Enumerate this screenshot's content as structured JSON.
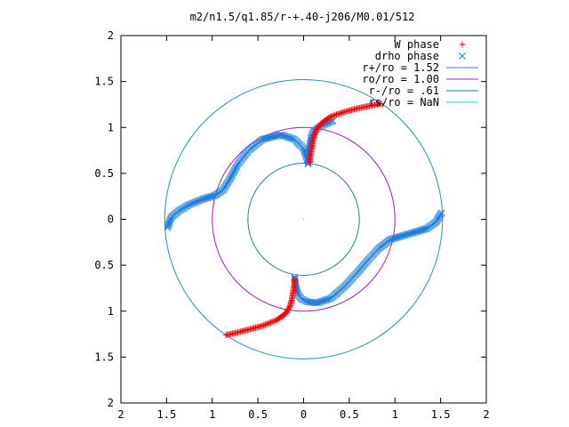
{
  "chart_data": {
    "type": "scatter",
    "title": "m2/n1.5/q1.85/r-+.40-j206/M0.01/512",
    "xlim": [
      -2,
      2
    ],
    "ylim": [
      -2,
      2
    ],
    "x_ticks": [
      -2,
      -1.5,
      -1,
      -0.5,
      0,
      0.5,
      1,
      1.5,
      2
    ],
    "x_tick_labels": [
      "2",
      "1.5",
      "1",
      "0.5",
      "0",
      "0.5",
      "1",
      "1.5",
      "2"
    ],
    "y_ticks": [
      -2,
      -1.5,
      -1,
      -0.5,
      0,
      0.5,
      1,
      1.5,
      2
    ],
    "y_tick_labels": [
      "2",
      "1.5",
      "1",
      "0.5",
      "0",
      "0.5",
      "1",
      "1.5",
      "2"
    ],
    "grid": false,
    "legend_position": "top-right",
    "series": [
      {
        "name": "W phase",
        "marker": "plus",
        "color": "#ff0000",
        "segments": [
          [
            [
              0.07,
              0.62
            ],
            [
              0.07,
              0.66
            ],
            [
              0.08,
              0.72
            ],
            [
              0.09,
              0.78
            ],
            [
              0.1,
              0.85
            ],
            [
              0.12,
              0.92
            ],
            [
              0.14,
              0.98
            ],
            [
              0.2,
              1.05
            ],
            [
              0.3,
              1.12
            ],
            [
              0.45,
              1.17
            ],
            [
              0.6,
              1.21
            ],
            [
              0.75,
              1.24
            ],
            [
              0.85,
              1.26
            ]
          ],
          [
            [
              -0.1,
              -0.65
            ],
            [
              -0.1,
              -0.7
            ],
            [
              -0.11,
              -0.76
            ],
            [
              -0.12,
              -0.82
            ],
            [
              -0.13,
              -0.88
            ],
            [
              -0.15,
              -0.95
            ],
            [
              -0.2,
              -1.03
            ],
            [
              -0.3,
              -1.1
            ],
            [
              -0.45,
              -1.16
            ],
            [
              -0.6,
              -1.2
            ],
            [
              -0.75,
              -1.24
            ],
            [
              -0.85,
              -1.26
            ]
          ]
        ]
      },
      {
        "name": "drho phase",
        "marker": "cross",
        "color": "#1f7fe0",
        "segments": [
          [
            [
              0.05,
              0.6
            ],
            [
              0.05,
              0.66
            ],
            [
              0.06,
              0.72
            ],
            [
              0.07,
              0.8
            ],
            [
              0.08,
              0.88
            ],
            [
              0.1,
              0.94
            ],
            [
              0.15,
              0.99
            ],
            [
              0.22,
              1.03
            ],
            [
              0.32,
              1.07
            ]
          ],
          [
            [
              0.04,
              0.65
            ],
            [
              0.0,
              0.77
            ],
            [
              -0.1,
              0.87
            ],
            [
              -0.25,
              0.92
            ],
            [
              -0.45,
              0.87
            ],
            [
              -0.6,
              0.75
            ],
            [
              -0.72,
              0.6
            ],
            [
              -0.8,
              0.45
            ],
            [
              -0.88,
              0.32
            ],
            [
              -0.97,
              0.26
            ],
            [
              -1.1,
              0.22
            ],
            [
              -1.25,
              0.16
            ],
            [
              -1.37,
              0.09
            ],
            [
              -1.45,
              0.02
            ],
            [
              -1.49,
              -0.09
            ]
          ],
          [
            [
              -0.1,
              -0.63
            ],
            [
              -0.09,
              -0.7
            ],
            [
              -0.08,
              -0.76
            ],
            [
              -0.06,
              -0.82
            ],
            [
              -0.02,
              -0.87
            ],
            [
              0.05,
              -0.9
            ],
            [
              0.15,
              -0.91
            ],
            [
              0.3,
              -0.86
            ],
            [
              0.45,
              -0.73
            ],
            [
              0.58,
              -0.59
            ],
            [
              0.7,
              -0.45
            ],
            [
              0.82,
              -0.32
            ],
            [
              0.95,
              -0.22
            ],
            [
              1.08,
              -0.18
            ],
            [
              1.22,
              -0.14
            ],
            [
              1.35,
              -0.1
            ],
            [
              1.45,
              -0.03
            ],
            [
              1.51,
              0.07
            ]
          ]
        ]
      },
      {
        "name": "r+/ro = 1.52",
        "type": "circle",
        "radius": 1.52,
        "color": "#1f90c8"
      },
      {
        "name": "ro/ro = 1.00",
        "type": "circle",
        "radius": 1.0,
        "color": "#a020c0"
      },
      {
        "name": "r-/ro = .61",
        "type": "circle",
        "radius": 0.61,
        "color": "#1f80b0"
      },
      {
        "name": "rs/ro = NaN",
        "type": "circle",
        "radius": null,
        "color": "#20c8e0"
      }
    ]
  }
}
